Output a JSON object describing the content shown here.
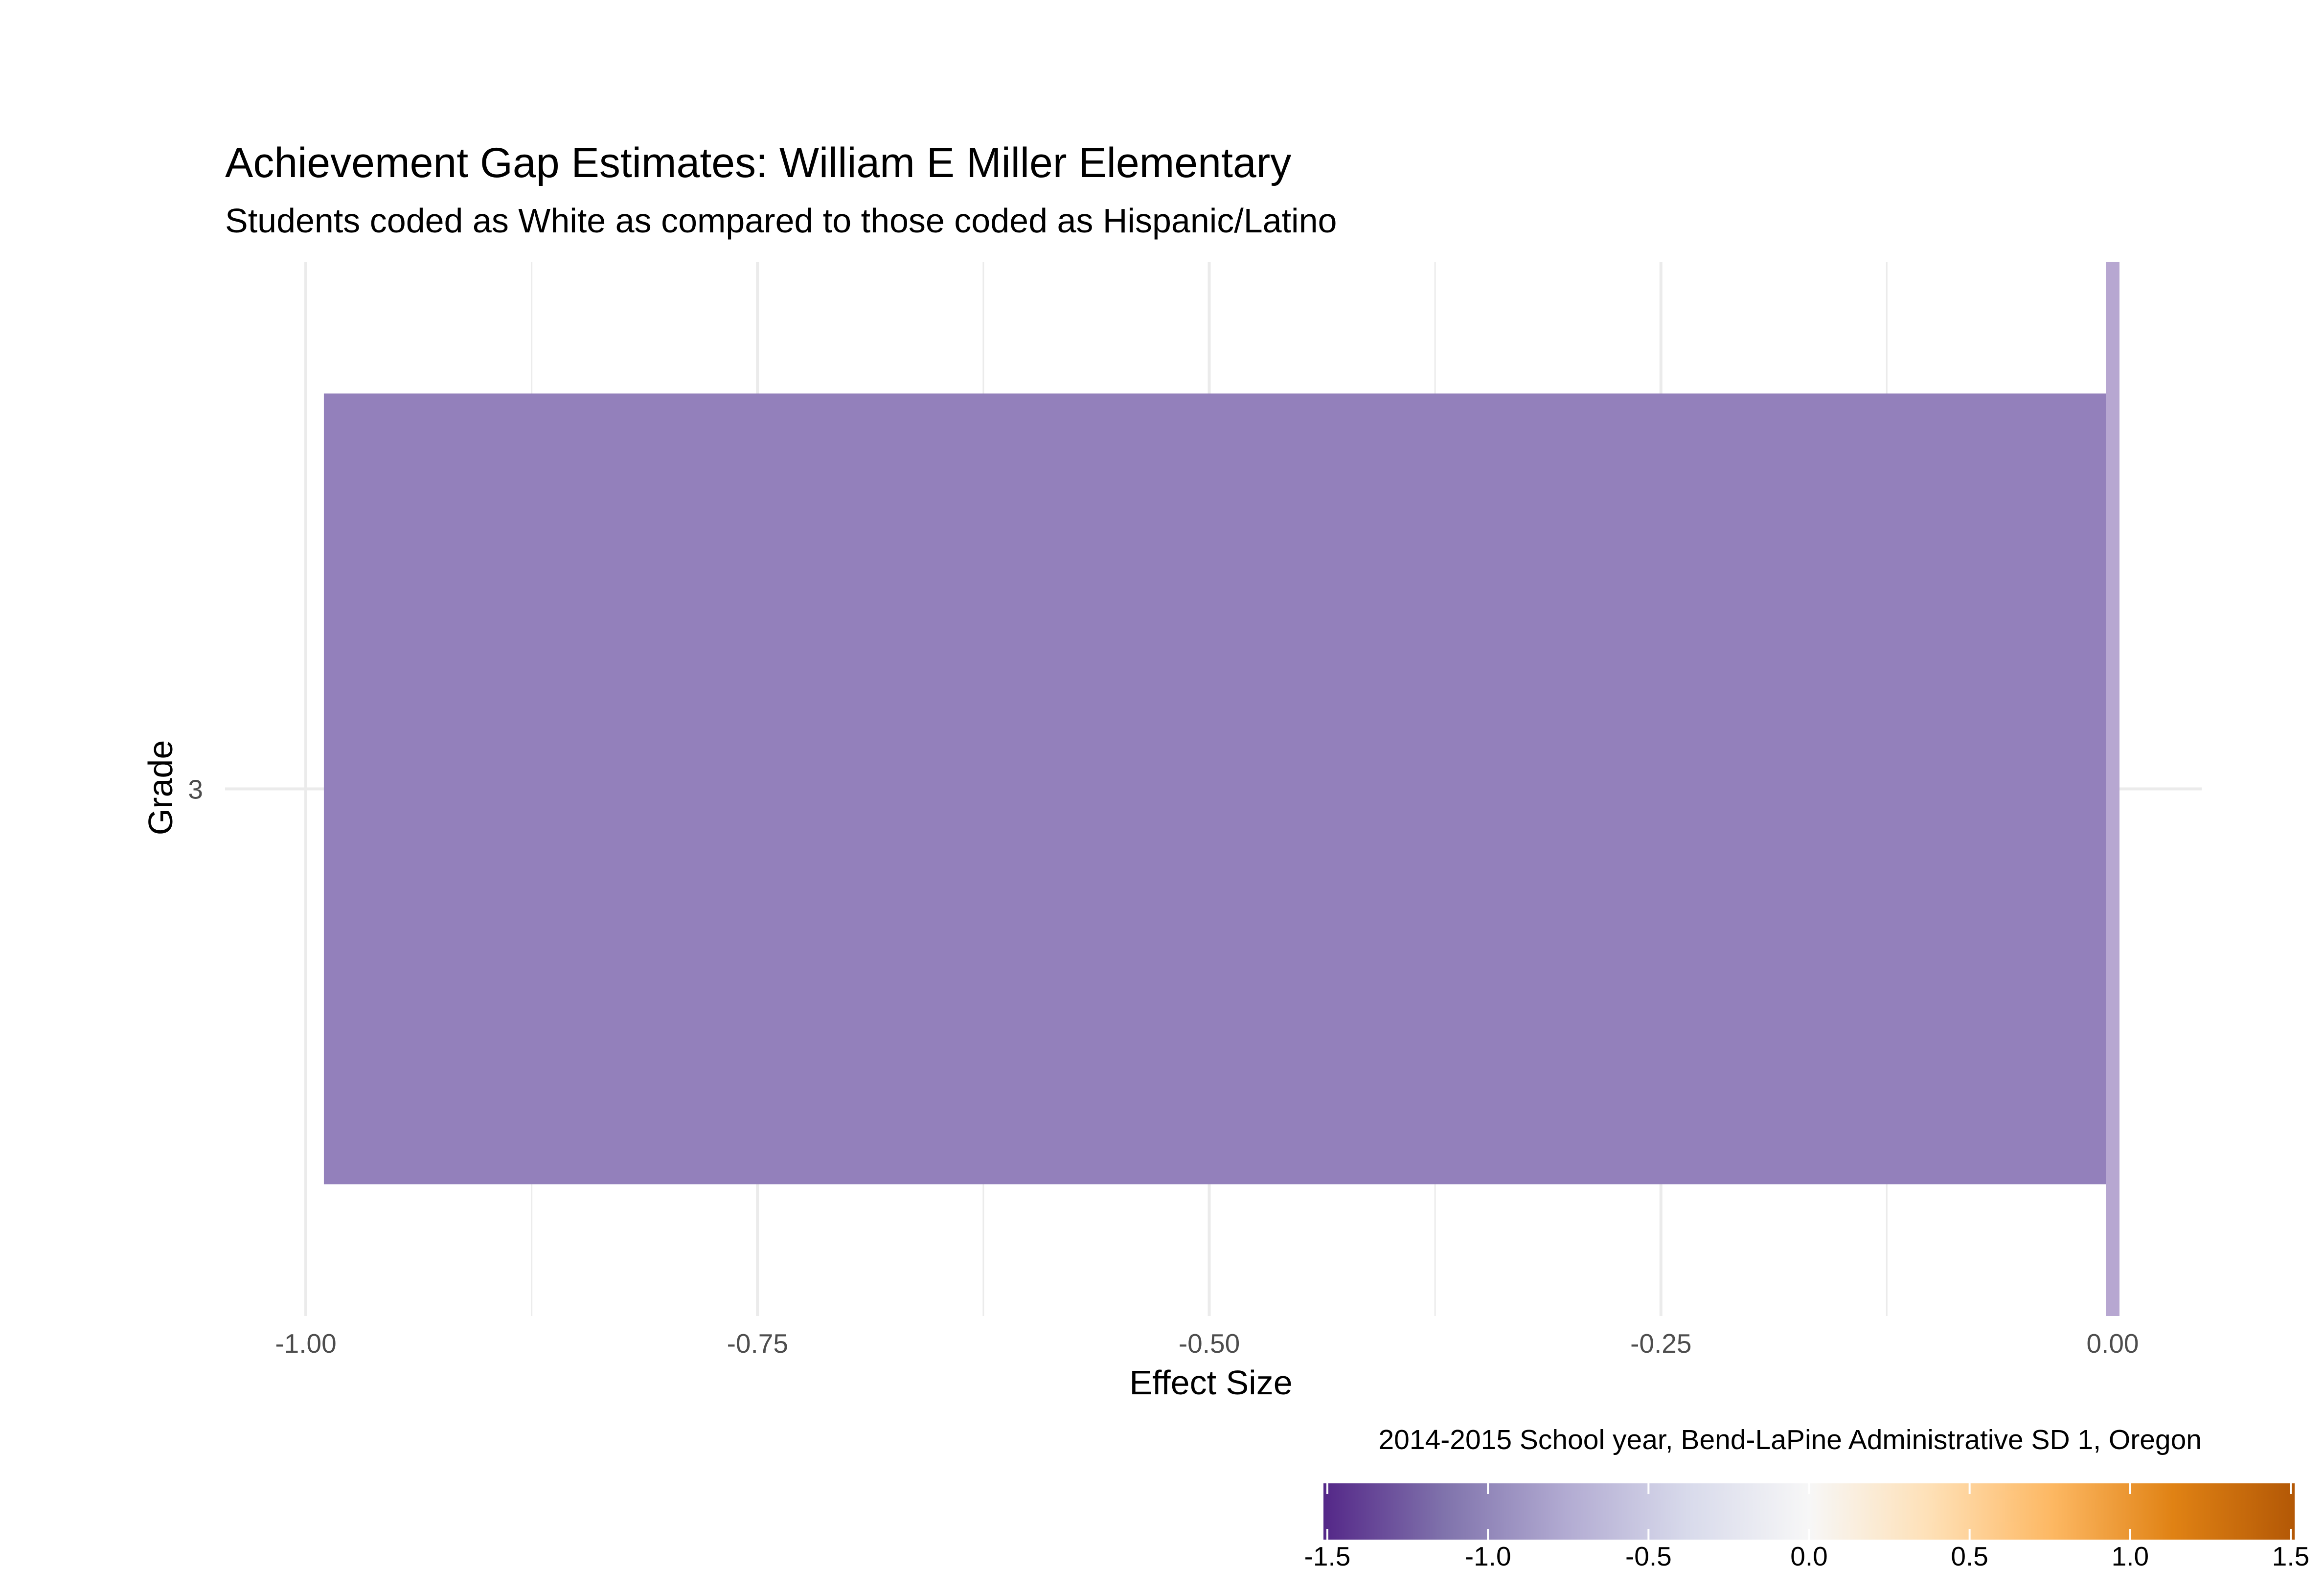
{
  "chart_data": {
    "type": "bar",
    "orientation": "horizontal",
    "title": "Achievement Gap Estimates: William E Miller Elementary",
    "subtitle": "Students coded as White as compared to those coded as Hispanic/Latino",
    "xlabel": "Effect Size",
    "ylabel": "Grade",
    "caption": "2014-2015 School year, Bend-LaPine Administrative SD 1, Oregon",
    "categories": [
      "3"
    ],
    "values": [
      -0.99
    ],
    "xlim": [
      -1.0,
      0.0
    ],
    "x_ticks": [
      "-1.00",
      "-0.75",
      "-0.50",
      "-0.25",
      "0.00"
    ],
    "x_tick_values": [
      -1.0,
      -0.75,
      -0.5,
      -0.25,
      0.0
    ],
    "reference_line": 0.0,
    "grid": true,
    "legend": {
      "type": "colorbar",
      "placement": "bottom-right",
      "range": [
        -1.5,
        1.5
      ],
      "tick_labels": [
        "-1.5",
        "-1.0",
        "-0.5",
        "0.0",
        "0.5",
        "1.0",
        "1.5"
      ],
      "tick_values": [
        -1.5,
        -1.0,
        -0.5,
        0.0,
        0.5,
        1.0,
        1.5
      ],
      "colors": [
        "#542788",
        "#8073ac",
        "#b2abd2",
        "#d8daeb",
        "#f7f7f7",
        "#fee0b6",
        "#fdb863",
        "#e08214",
        "#b35806"
      ]
    },
    "colors": {
      "bar": "#9380bb",
      "reference_line": "#b7a7d1",
      "grid": "#ebebeb"
    }
  }
}
